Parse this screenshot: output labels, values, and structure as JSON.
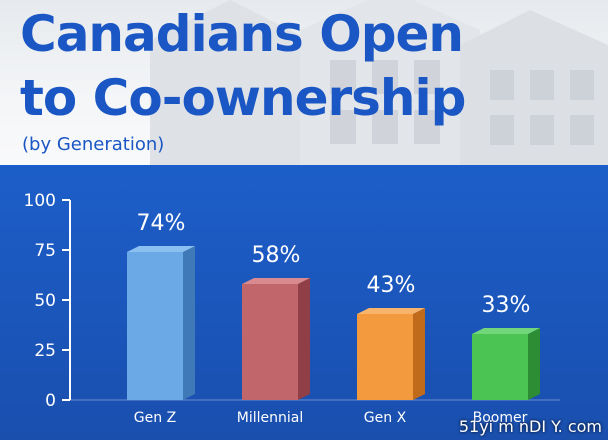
{
  "header": {
    "title_line1": "Canadians Open",
    "title_line2": "to Co-ownership",
    "subtitle": "(by Generation)"
  },
  "chart_data": {
    "type": "bar",
    "categories": [
      "Gen Z",
      "Millennial",
      "Gen X",
      "Boomer"
    ],
    "values": [
      74,
      58,
      43,
      33
    ],
    "data_labels": [
      "74%",
      "58%",
      "43%",
      "33%"
    ],
    "colors": [
      "#6aa8e6",
      "#c1676c",
      "#f39a3e",
      "#4cc454"
    ],
    "side_colors": [
      "#3f79b8",
      "#8f3f45",
      "#c06b1c",
      "#2c8d35"
    ],
    "top_colors": [
      "#8cc0f0",
      "#d88a8e",
      "#f7b46a",
      "#72d67a"
    ],
    "ylim": [
      0,
      100
    ],
    "yticks": [
      0,
      25,
      50,
      75,
      100
    ],
    "title": "Canadians Open to Co-ownership",
    "subtitle": "(by Generation)",
    "xlabel": "",
    "ylabel": "",
    "grid": false,
    "background_color": "#1c5ec9"
  },
  "watermark": "51yi m nDI Y. com"
}
